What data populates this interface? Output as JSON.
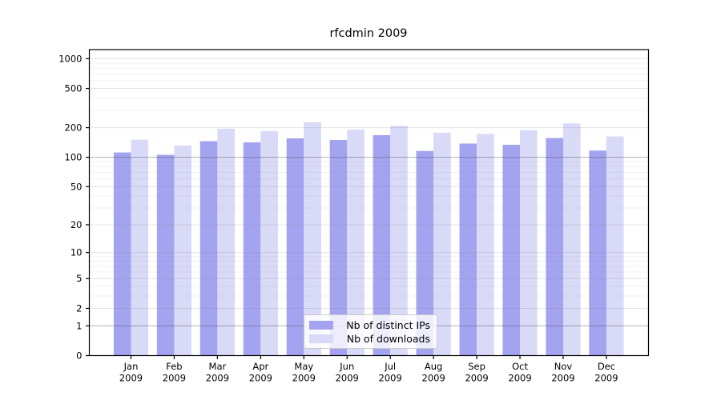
{
  "figure": {
    "title": "rfcdmin 2009",
    "background": "#ffffff"
  },
  "chart_data": {
    "type": "bar",
    "title": "rfcdmin 2009",
    "categories": [
      "Jan",
      "Feb",
      "Mar",
      "Apr",
      "May",
      "Jun",
      "Jul",
      "Aug",
      "Sep",
      "Oct",
      "Nov",
      "Dec"
    ],
    "category_year": "2009",
    "series": [
      {
        "name": "Nb of distinct IPs",
        "color": "#a3a3f0",
        "values": [
          112,
          106,
          146,
          142,
          156,
          150,
          168,
          116,
          138,
          134,
          157,
          117
        ]
      },
      {
        "name": "Nb of downloads",
        "color": "#d9d9f8",
        "values": [
          151,
          132,
          195,
          185,
          227,
          191,
          209,
          178,
          173,
          189,
          221,
          163
        ]
      }
    ],
    "y_scale": "log1p",
    "ylim": [
      0,
      1236
    ],
    "y_ticks": [
      1000,
      500,
      200,
      100,
      50,
      20,
      10,
      5,
      2,
      1,
      0
    ],
    "grid": {
      "on": true,
      "dark_lines": [
        1,
        100
      ],
      "light_lines": [
        2,
        5,
        10,
        20,
        50,
        200,
        500,
        1000
      ],
      "minor_lines": [
        3,
        4,
        6,
        7,
        8,
        9,
        30,
        40,
        60,
        70,
        80,
        90,
        300,
        400,
        600,
        700,
        800,
        900
      ]
    },
    "legend_position": "bottom-center-inside",
    "colors": {
      "axis": "#000000",
      "grid_dark": "rgba(80,80,80,0.45)",
      "grid_light": "rgba(130,130,130,0.22)",
      "grid_minor": "rgba(150,150,150,0.13)",
      "tick_text": "#000000"
    }
  }
}
